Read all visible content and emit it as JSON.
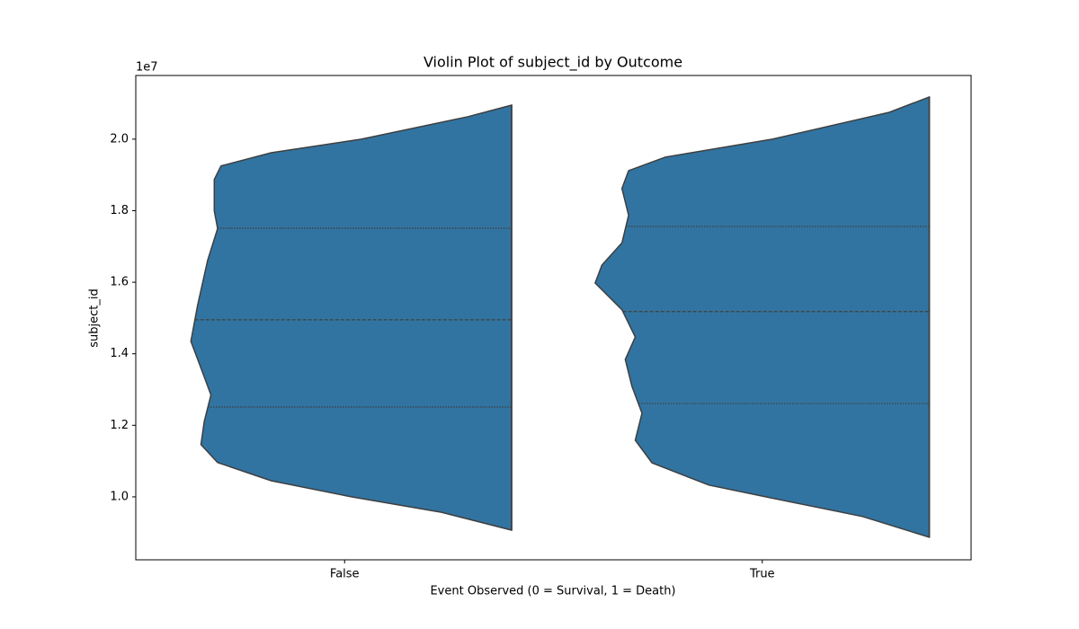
{
  "chart_data": {
    "type": "violin",
    "title": "Violin Plot of subject_id by Outcome",
    "x_label": "Event Observed (0 = Survival, 1 = Death)",
    "y_label": "subject_id",
    "y_offset_label": "1e7",
    "categories": [
      "False",
      "True"
    ],
    "color": "#3274a1",
    "edge_color": "#3f3f3f",
    "ylim": [
      8240000,
      21780000
    ],
    "yticks": [
      {
        "value": 10000000,
        "label": "1.0"
      },
      {
        "value": 12000000,
        "label": "1.2"
      },
      {
        "value": 14000000,
        "label": "1.4"
      },
      {
        "value": 16000000,
        "label": "1.6"
      },
      {
        "value": 18000000,
        "label": "1.8"
      },
      {
        "value": 20000000,
        "label": "2.0"
      }
    ],
    "violins": [
      {
        "density_y": [
          20950000,
          20630000,
          20000000,
          19620000,
          19250000,
          18870000,
          18000000,
          17500000,
          16610000,
          15350000,
          14350000,
          13600000,
          12850000,
          12110000,
          11460000,
          10960000,
          10450000,
          10000000,
          9570000,
          9070000
        ],
        "density": [
          0,
          0.13,
          0.45,
          0.72,
          0.87,
          0.89,
          0.89,
          0.88,
          0.91,
          0.94,
          0.96,
          0.93,
          0.9,
          0.92,
          0.93,
          0.88,
          0.72,
          0.48,
          0.21,
          0
        ],
        "quartiles": [
          12510000,
          14950000,
          17510000
        ]
      },
      {
        "density_y": [
          21180000,
          20750000,
          20000000,
          19500000,
          19120000,
          18620000,
          17870000,
          17100000,
          16480000,
          15980000,
          15230000,
          14470000,
          13840000,
          13090000,
          12340000,
          11580000,
          10950000,
          10330000,
          10000000,
          9450000,
          8870000
        ],
        "density": [
          0,
          0.12,
          0.47,
          0.79,
          0.9,
          0.92,
          0.9,
          0.92,
          0.98,
          1.0,
          0.92,
          0.88,
          0.91,
          0.89,
          0.86,
          0.88,
          0.83,
          0.66,
          0.49,
          0.2,
          0
        ],
        "quartiles": [
          12610000,
          15180000,
          17560000
        ]
      }
    ]
  }
}
